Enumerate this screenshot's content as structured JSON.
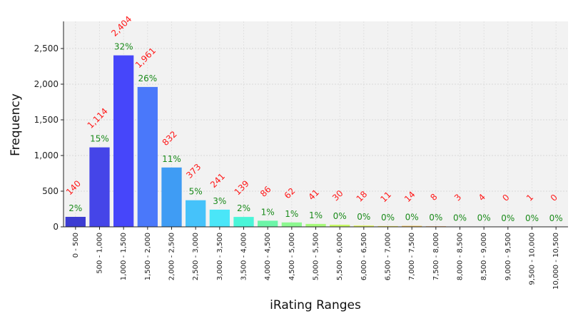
{
  "chart_data": {
    "type": "bar",
    "xlabel": "iRating Ranges",
    "ylabel": "Frequency",
    "ylim": [
      0,
      2880
    ],
    "yticks": [
      0,
      500,
      1000,
      1500,
      2000,
      2500
    ],
    "ytick_labels": [
      "0",
      "500",
      "1,000",
      "1,500",
      "2,000",
      "2,500"
    ],
    "grid": true,
    "categories": [
      "0 - 500",
      "500 - 1,000",
      "1,000 - 1,500",
      "1,500 - 2,000",
      "2,000 - 2,500",
      "2,500 - 3,000",
      "3,000 - 3,500",
      "3,500 - 4,000",
      "4,000 - 4,500",
      "4,500 - 5,000",
      "5,000 - 5,500",
      "5,500 - 6,000",
      "6,000 - 6,500",
      "6,500 - 7,000",
      "7,000 - 7,500",
      "7,500 - 8,000",
      "8,000 - 8,500",
      "8,500 - 9,000",
      "9,000 - 9,500",
      "9,500 - 10,000",
      "10,000 - 10,500"
    ],
    "values": [
      140,
      1114,
      2404,
      1961,
      832,
      373,
      241,
      139,
      86,
      62,
      41,
      30,
      18,
      11,
      14,
      8,
      3,
      4,
      0,
      1,
      0
    ],
    "count_labels": [
      "140",
      "1,114",
      "2,404",
      "1,961",
      "832",
      "373",
      "241",
      "139",
      "86",
      "62",
      "41",
      "30",
      "18",
      "11",
      "14",
      "8",
      "3",
      "4",
      "0",
      "1",
      "0"
    ],
    "percent_labels": [
      "2%",
      "15%",
      "32%",
      "26%",
      "11%",
      "5%",
      "3%",
      "2%",
      "1%",
      "1%",
      "1%",
      "0%",
      "0%",
      "0%",
      "0%",
      "0%",
      "0%",
      "0%",
      "0%",
      "0%",
      "0%"
    ],
    "colors": [
      "#3c3cd2",
      "#4545e8",
      "#4646fa",
      "#4a78fa",
      "#3f9cf4",
      "#45c2fa",
      "#4ae6f8",
      "#4af5d8",
      "#6cf5a8",
      "#8cf890",
      "#a6fa7a",
      "#c8fa66",
      "#e6fa5a",
      "#f4ea54",
      "#f6c452",
      "#f5a24a",
      "#f28242",
      "#ee6a3c",
      "#e85034",
      "#e03a2c",
      "#d62824"
    ],
    "count_label_color": "#ff1a1a",
    "percent_label_color": "#1a8a1a",
    "plot_background": "#f2f2f2"
  }
}
